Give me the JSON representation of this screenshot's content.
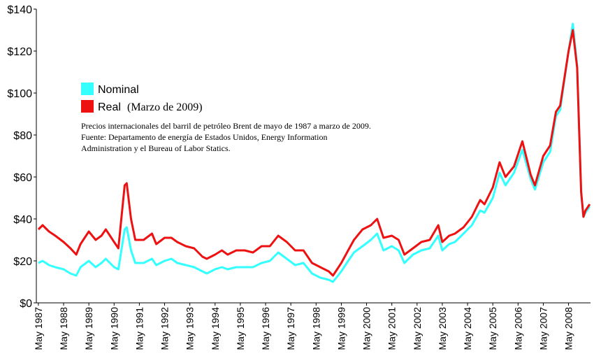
{
  "chart_data": {
    "type": "line",
    "legend_note": "(Marzo de 2009)",
    "note": [
      "Precios internacionales del barril de petróleo Brent de mayo de 1987 a marzo de 2009.",
      "Fuente: Departamento de energía de Estados Unidos, Energy Information",
      "Administration y el Bureau of Labor Statics."
    ],
    "x": [
      1987.33,
      1987.5,
      1987.75,
      1988.0,
      1988.33,
      1988.6,
      1988.83,
      1989.0,
      1989.33,
      1989.6,
      1989.83,
      1990.0,
      1990.33,
      1990.5,
      1990.75,
      1990.83,
      1991.0,
      1991.17,
      1991.5,
      1991.83,
      1992.0,
      1992.33,
      1992.6,
      1992.83,
      1993.17,
      1993.5,
      1993.83,
      1994.0,
      1994.33,
      1994.6,
      1994.83,
      1995.17,
      1995.5,
      1995.83,
      1996.17,
      1996.5,
      1996.83,
      1997.17,
      1997.5,
      1997.83,
      1998.17,
      1998.5,
      1998.83,
      1999.0,
      1999.33,
      1999.6,
      1999.83,
      2000.17,
      2000.5,
      2000.75,
      2001.0,
      2001.33,
      2001.6,
      2001.83,
      2002.17,
      2002.5,
      2002.83,
      2003.17,
      2003.33,
      2003.6,
      2003.83,
      2004.17,
      2004.5,
      2004.83,
      2005.0,
      2005.33,
      2005.6,
      2005.83,
      2006.17,
      2006.5,
      2006.83,
      2007.0,
      2007.33,
      2007.6,
      2007.83,
      2008.0,
      2008.33,
      2008.5,
      2008.67,
      2008.83,
      2008.92,
      2009.0,
      2009.17
    ],
    "series": [
      {
        "name": "Nominal",
        "color": "#33ffff",
        "values": [
          19,
          20,
          18,
          17,
          16,
          14,
          13,
          17,
          20,
          17,
          19,
          21,
          17,
          16,
          35,
          36,
          25,
          19,
          19,
          21,
          18,
          20,
          21,
          19,
          18,
          17,
          15,
          14,
          16,
          17,
          16,
          17,
          17,
          17,
          19,
          20,
          24,
          21,
          18,
          19,
          14,
          12,
          11,
          10,
          15,
          20,
          24,
          27,
          30,
          33,
          25,
          27,
          25,
          19,
          23,
          25,
          26,
          32,
          25,
          28,
          29,
          33,
          37,
          44,
          43,
          50,
          62,
          56,
          62,
          73,
          59,
          54,
          67,
          72,
          89,
          92,
          120,
          133,
          113,
          52,
          41,
          43,
          46
        ]
      },
      {
        "name": "Real",
        "color": "#ee1111",
        "values": [
          35,
          37,
          34,
          32,
          29,
          26,
          23,
          28,
          34,
          30,
          32,
          35,
          29,
          26,
          56,
          57,
          40,
          30,
          30,
          33,
          28,
          31,
          31,
          29,
          27,
          26,
          22,
          21,
          23,
          25,
          23,
          25,
          25,
          24,
          27,
          27,
          32,
          29,
          25,
          25,
          19,
          17,
          15,
          13,
          19,
          25,
          30,
          35,
          37,
          40,
          31,
          32,
          30,
          23,
          26,
          29,
          30,
          37,
          29,
          32,
          33,
          36,
          41,
          49,
          47,
          55,
          67,
          60,
          65,
          77,
          61,
          56,
          70,
          75,
          91,
          94,
          120,
          130,
          112,
          53,
          41,
          44,
          47
        ]
      }
    ],
    "xlim": [
      1987.25,
      2009.2
    ],
    "xticks": [
      {
        "value": 1987.33,
        "label": "May 1987"
      },
      {
        "value": 1988.33,
        "label": "May 1988"
      },
      {
        "value": 1989.33,
        "label": "May 1989"
      },
      {
        "value": 1990.33,
        "label": "May 1990"
      },
      {
        "value": 1991.33,
        "label": "May 1991"
      },
      {
        "value": 1992.33,
        "label": "May 1992"
      },
      {
        "value": 1993.33,
        "label": "May 1993"
      },
      {
        "value": 1994.33,
        "label": "May 1994"
      },
      {
        "value": 1995.33,
        "label": "May 1995"
      },
      {
        "value": 1996.33,
        "label": "May 1996"
      },
      {
        "value": 1997.33,
        "label": "May 1997"
      },
      {
        "value": 1998.33,
        "label": "May 1998"
      },
      {
        "value": 1999.33,
        "label": "May 1999"
      },
      {
        "value": 2000.33,
        "label": "May 2000"
      },
      {
        "value": 2001.33,
        "label": "May 2001"
      },
      {
        "value": 2002.33,
        "label": "May 2002"
      },
      {
        "value": 2003.33,
        "label": "May 2003"
      },
      {
        "value": 2004.33,
        "label": "May 2004"
      },
      {
        "value": 2005.33,
        "label": "May 2005"
      },
      {
        "value": 2006.33,
        "label": "May 2006"
      },
      {
        "value": 2007.33,
        "label": "May 2007"
      },
      {
        "value": 2008.33,
        "label": "May 2008"
      }
    ],
    "ylim": [
      0,
      140
    ],
    "yticks": [
      {
        "value": 0,
        "label": "$0"
      },
      {
        "value": 20,
        "label": "$20"
      },
      {
        "value": 40,
        "label": "$40"
      },
      {
        "value": 60,
        "label": "$60"
      },
      {
        "value": 80,
        "label": "$80"
      },
      {
        "value": 100,
        "label": "$100"
      },
      {
        "value": 120,
        "label": "$120"
      },
      {
        "value": 140,
        "label": "$140"
      }
    ],
    "grid": false
  }
}
